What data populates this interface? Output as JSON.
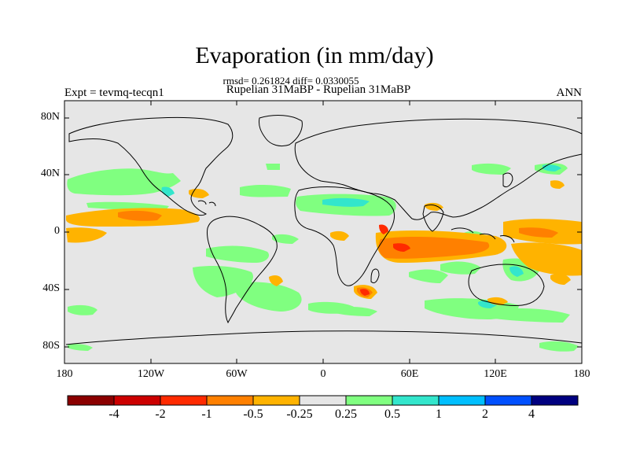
{
  "header": {
    "title": "Evaporation (in mm/day)",
    "stats": "rmsd= 0.261824 diff= 0.0330055",
    "subtitle": "Rupelian  31MaBP - Rupelian  31MaBP",
    "experiment": "Expt = tevmq-tecqn1",
    "season": "ANN"
  },
  "axes": {
    "y_ticks": [
      "80N",
      "40N",
      "0",
      "40S",
      "80S"
    ],
    "x_ticks": [
      "180",
      "120W",
      "60W",
      "0",
      "60E",
      "120E",
      "180"
    ]
  },
  "colorbar": {
    "colors": [
      "#8b0000",
      "#cc0000",
      "#ff2a00",
      "#ff8000",
      "#ffb300",
      "#e6e6e6",
      "#80ff80",
      "#33e6cc",
      "#00bfff",
      "#0050ff",
      "#000080"
    ],
    "labels": [
      "-4",
      "-2",
      "-1",
      "-0.5",
      "-0.25",
      "0.25",
      "0.5",
      "1",
      "2",
      "4"
    ]
  },
  "map_style": {
    "background": "#e6e6e6",
    "positive_weak": "#80ff80",
    "positive_mid": "#33e6cc",
    "negative_weak": "#ffb300",
    "negative_mid": "#ff8000",
    "negative_strong": "#ff2a00"
  }
}
